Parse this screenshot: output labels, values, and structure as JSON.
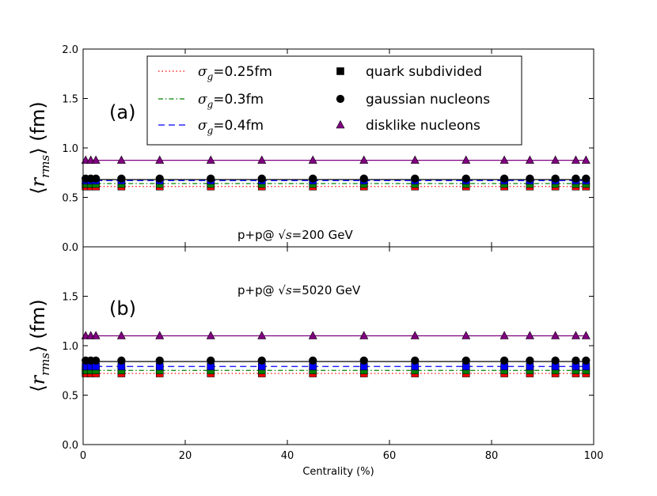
{
  "chart_data": [
    {
      "type": "line",
      "panel_label": "(a)",
      "annotation": {
        "prefix": "p+p@ ",
        "math": "√s",
        "suffix": "=200 GeV"
      },
      "ylabel": {
        "left": "⟨",
        "r": "r",
        "sub": "rms",
        "right": "⟩ (fm)"
      },
      "xlim": [
        0,
        100
      ],
      "ylim": [
        0,
        2.0
      ],
      "yticks": [
        "0.0",
        "0.5",
        "1.0",
        "1.5",
        "2.0"
      ],
      "x": [
        0.5,
        1.5,
        2.5,
        7.5,
        15,
        25,
        35,
        45,
        55,
        65,
        75,
        82.5,
        87.5,
        92.5,
        96.5,
        98.5
      ],
      "lines": [
        {
          "name": "σg=0.25fm",
          "style": "dotted",
          "color": "#ff0000",
          "value": 0.61
        },
        {
          "name": "σg=0.3fm",
          "style": "dashdot",
          "color": "#008000",
          "value": 0.64
        },
        {
          "name": "σg=0.4fm",
          "style": "dashed",
          "color": "#0000ff",
          "value": 0.67
        },
        {
          "name": "gaussian",
          "style": "solid",
          "color": "#000000",
          "value": 0.68
        },
        {
          "name": "disklike",
          "style": "solid",
          "color": "#800080",
          "value": 0.875
        }
      ],
      "marker_series": [
        {
          "name": "quark subdivided",
          "marker": "square",
          "values": [
            {
              "color": "#ff0000",
              "value": 0.61
            },
            {
              "color": "#008000",
              "value": 0.635
            },
            {
              "color": "#0000ff",
              "value": 0.67
            }
          ]
        },
        {
          "name": "gaussian nucleons",
          "marker": "circle",
          "values": [
            {
              "color": "#000000",
              "value": 0.69
            }
          ]
        },
        {
          "name": "disklike nucleons",
          "marker": "triangle",
          "values": [
            {
              "color": "#800080",
              "value": 0.875
            }
          ]
        }
      ]
    },
    {
      "type": "line",
      "panel_label": "(b)",
      "annotation": {
        "prefix": "p+p@ ",
        "math": "√s",
        "suffix": "=5020 GeV"
      },
      "ylabel": {
        "left": "⟨",
        "r": "r",
        "sub": "rms",
        "right": "⟩ (fm)"
      },
      "xlabel": "Centrality (%)",
      "xlim": [
        0,
        100
      ],
      "ylim": [
        0,
        2.0
      ],
      "xticks": [
        "0",
        "20",
        "40",
        "60",
        "80",
        "100"
      ],
      "yticks": [
        "0.0",
        "0.5",
        "1.0",
        "1.5"
      ],
      "x": [
        0.5,
        1.5,
        2.5,
        7.5,
        15,
        25,
        35,
        45,
        55,
        65,
        75,
        82.5,
        87.5,
        92.5,
        96.5,
        98.5
      ],
      "lines": [
        {
          "name": "σg=0.25fm",
          "style": "dotted",
          "color": "#ff0000",
          "value": 0.72
        },
        {
          "name": "σg=0.3fm",
          "style": "dashdot",
          "color": "#008000",
          "value": 0.75
        },
        {
          "name": "σg=0.4fm",
          "style": "dashed",
          "color": "#0000ff",
          "value": 0.79
        },
        {
          "name": "gaussian",
          "style": "solid",
          "color": "#000000",
          "value": 0.84
        },
        {
          "name": "disklike",
          "style": "solid",
          "color": "#800080",
          "value": 1.1
        }
      ],
      "marker_series": [
        {
          "name": "quark subdivided",
          "marker": "square",
          "values": [
            {
              "color": "#ff0000",
              "value": 0.72
            },
            {
              "color": "#008000",
              "value": 0.75
            },
            {
              "color": "#0000ff",
              "value": 0.79
            }
          ]
        },
        {
          "name": "gaussian nucleons",
          "marker": "circle",
          "values": [
            {
              "color": "#000000",
              "value": 0.85
            }
          ]
        },
        {
          "name": "disklike nucleons",
          "marker": "triangle",
          "values": [
            {
              "color": "#800080",
              "value": 1.1
            }
          ]
        }
      ]
    }
  ],
  "legend": {
    "lines": [
      {
        "sigma": "σ",
        "sub": "g",
        "label": "=0.25fm",
        "style": "dotted",
        "color": "#ff0000"
      },
      {
        "sigma": "σ",
        "sub": "g",
        "label": "=0.3fm",
        "style": "dashdot",
        "color": "#008000"
      },
      {
        "sigma": "σ",
        "sub": "g",
        "label": "=0.4fm",
        "style": "dashed",
        "color": "#0000ff"
      }
    ],
    "markers": [
      {
        "label": "quark subdivided",
        "marker": "square",
        "color": "#000000"
      },
      {
        "label": "gaussian nucleons",
        "marker": "circle",
        "color": "#000000"
      },
      {
        "label": "disklike nucleons",
        "marker": "triangle",
        "color": "#800080"
      }
    ]
  }
}
